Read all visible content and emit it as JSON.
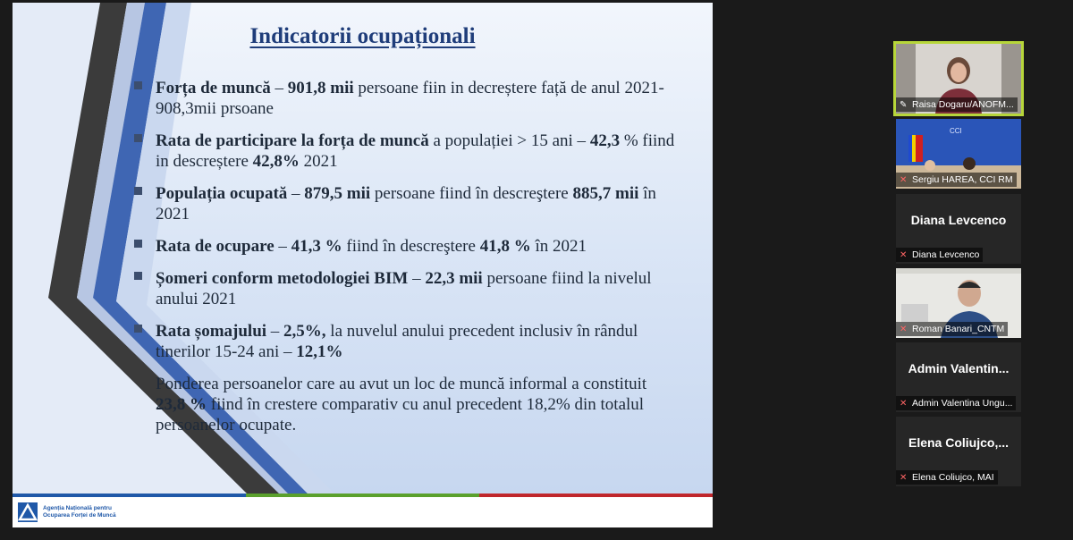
{
  "slide": {
    "title": "Indicatorii ocupaționali",
    "bullets": [
      {
        "b1": "Forța de muncă",
        "t1": " – ",
        "b2": "901,8 mii",
        "t2": " persoane fiin in decreștere față de anul 2021- 908,3mii prsoane"
      },
      {
        "b1": "Rata de participare la forța de muncă",
        "t1": " a populației > 15 ani – ",
        "b2": "42,3",
        "t2": " % fiind in descreștere ",
        "b3": "42,8%",
        "t3": " 2021"
      },
      {
        "b1": "Populația ocupată",
        "t1": " – ",
        "b2": "879,5 mii",
        "t2": " persoane fiind în descreştere ",
        "b3": "885,7 mii",
        "t3": " în 2021"
      },
      {
        "b1": "Rata de ocupare",
        "t1": " – ",
        "b2": "41,3 %",
        "t2": " fiind în descreştere ",
        "b3": "41,8 %",
        "t3": " în 2021"
      },
      {
        "b1": "Șomeri conform metodologiei BIM",
        "t1": " – ",
        "b2": "22,3 mii",
        "t2": " persoane fiind la nivelul anului 2021"
      },
      {
        "b1": "Rata șomajului",
        "t1": " – ",
        "b2": "2,5%,",
        "t2": " la nuvelul anului precedent inclusiv în rândul tinerilor 15-24 ani – ",
        "b3": "12,1%",
        "t3": ""
      }
    ],
    "note": {
      "t1": "Ponderea persoanelor care au avut un loc de muncă informal a constituit ",
      "b1": "23,8 %",
      "t2": " fiind în crestere comparativ cu anul precedent 18,2% din totalul persoanelor ocupate."
    },
    "footer_line1": "Agenția Națională pentru",
    "footer_line2": "Ocuparea Forței de Muncă",
    "colors": {
      "title": "#1f3d7a",
      "footer_blue": "#1f58a8",
      "footer_green": "#5aa02c",
      "footer_red": "#c0262b"
    }
  },
  "participants": [
    {
      "name": "Raisa Dogaru/ANOFM...",
      "icon": "pin-icon",
      "video": true,
      "active": true
    },
    {
      "name": "Sergiu HAREA, CCI RM",
      "icon": "mic-muted-icon",
      "video": true
    },
    {
      "name": "Diana Levcenco",
      "display": "Diana Levcenco",
      "icon": "mic-muted-icon",
      "video": false
    },
    {
      "name": "Roman Banari_CNTM",
      "icon": "mic-muted-icon",
      "video": true
    },
    {
      "name": "Admin Valentina Ungu...",
      "display": "Admin  Valentin...",
      "icon": "mic-muted-icon",
      "video": false
    },
    {
      "name": "Elena Coliujco, MAI",
      "display": "Elena  Coliujco,...",
      "icon": "mic-muted-icon",
      "video": false
    }
  ]
}
